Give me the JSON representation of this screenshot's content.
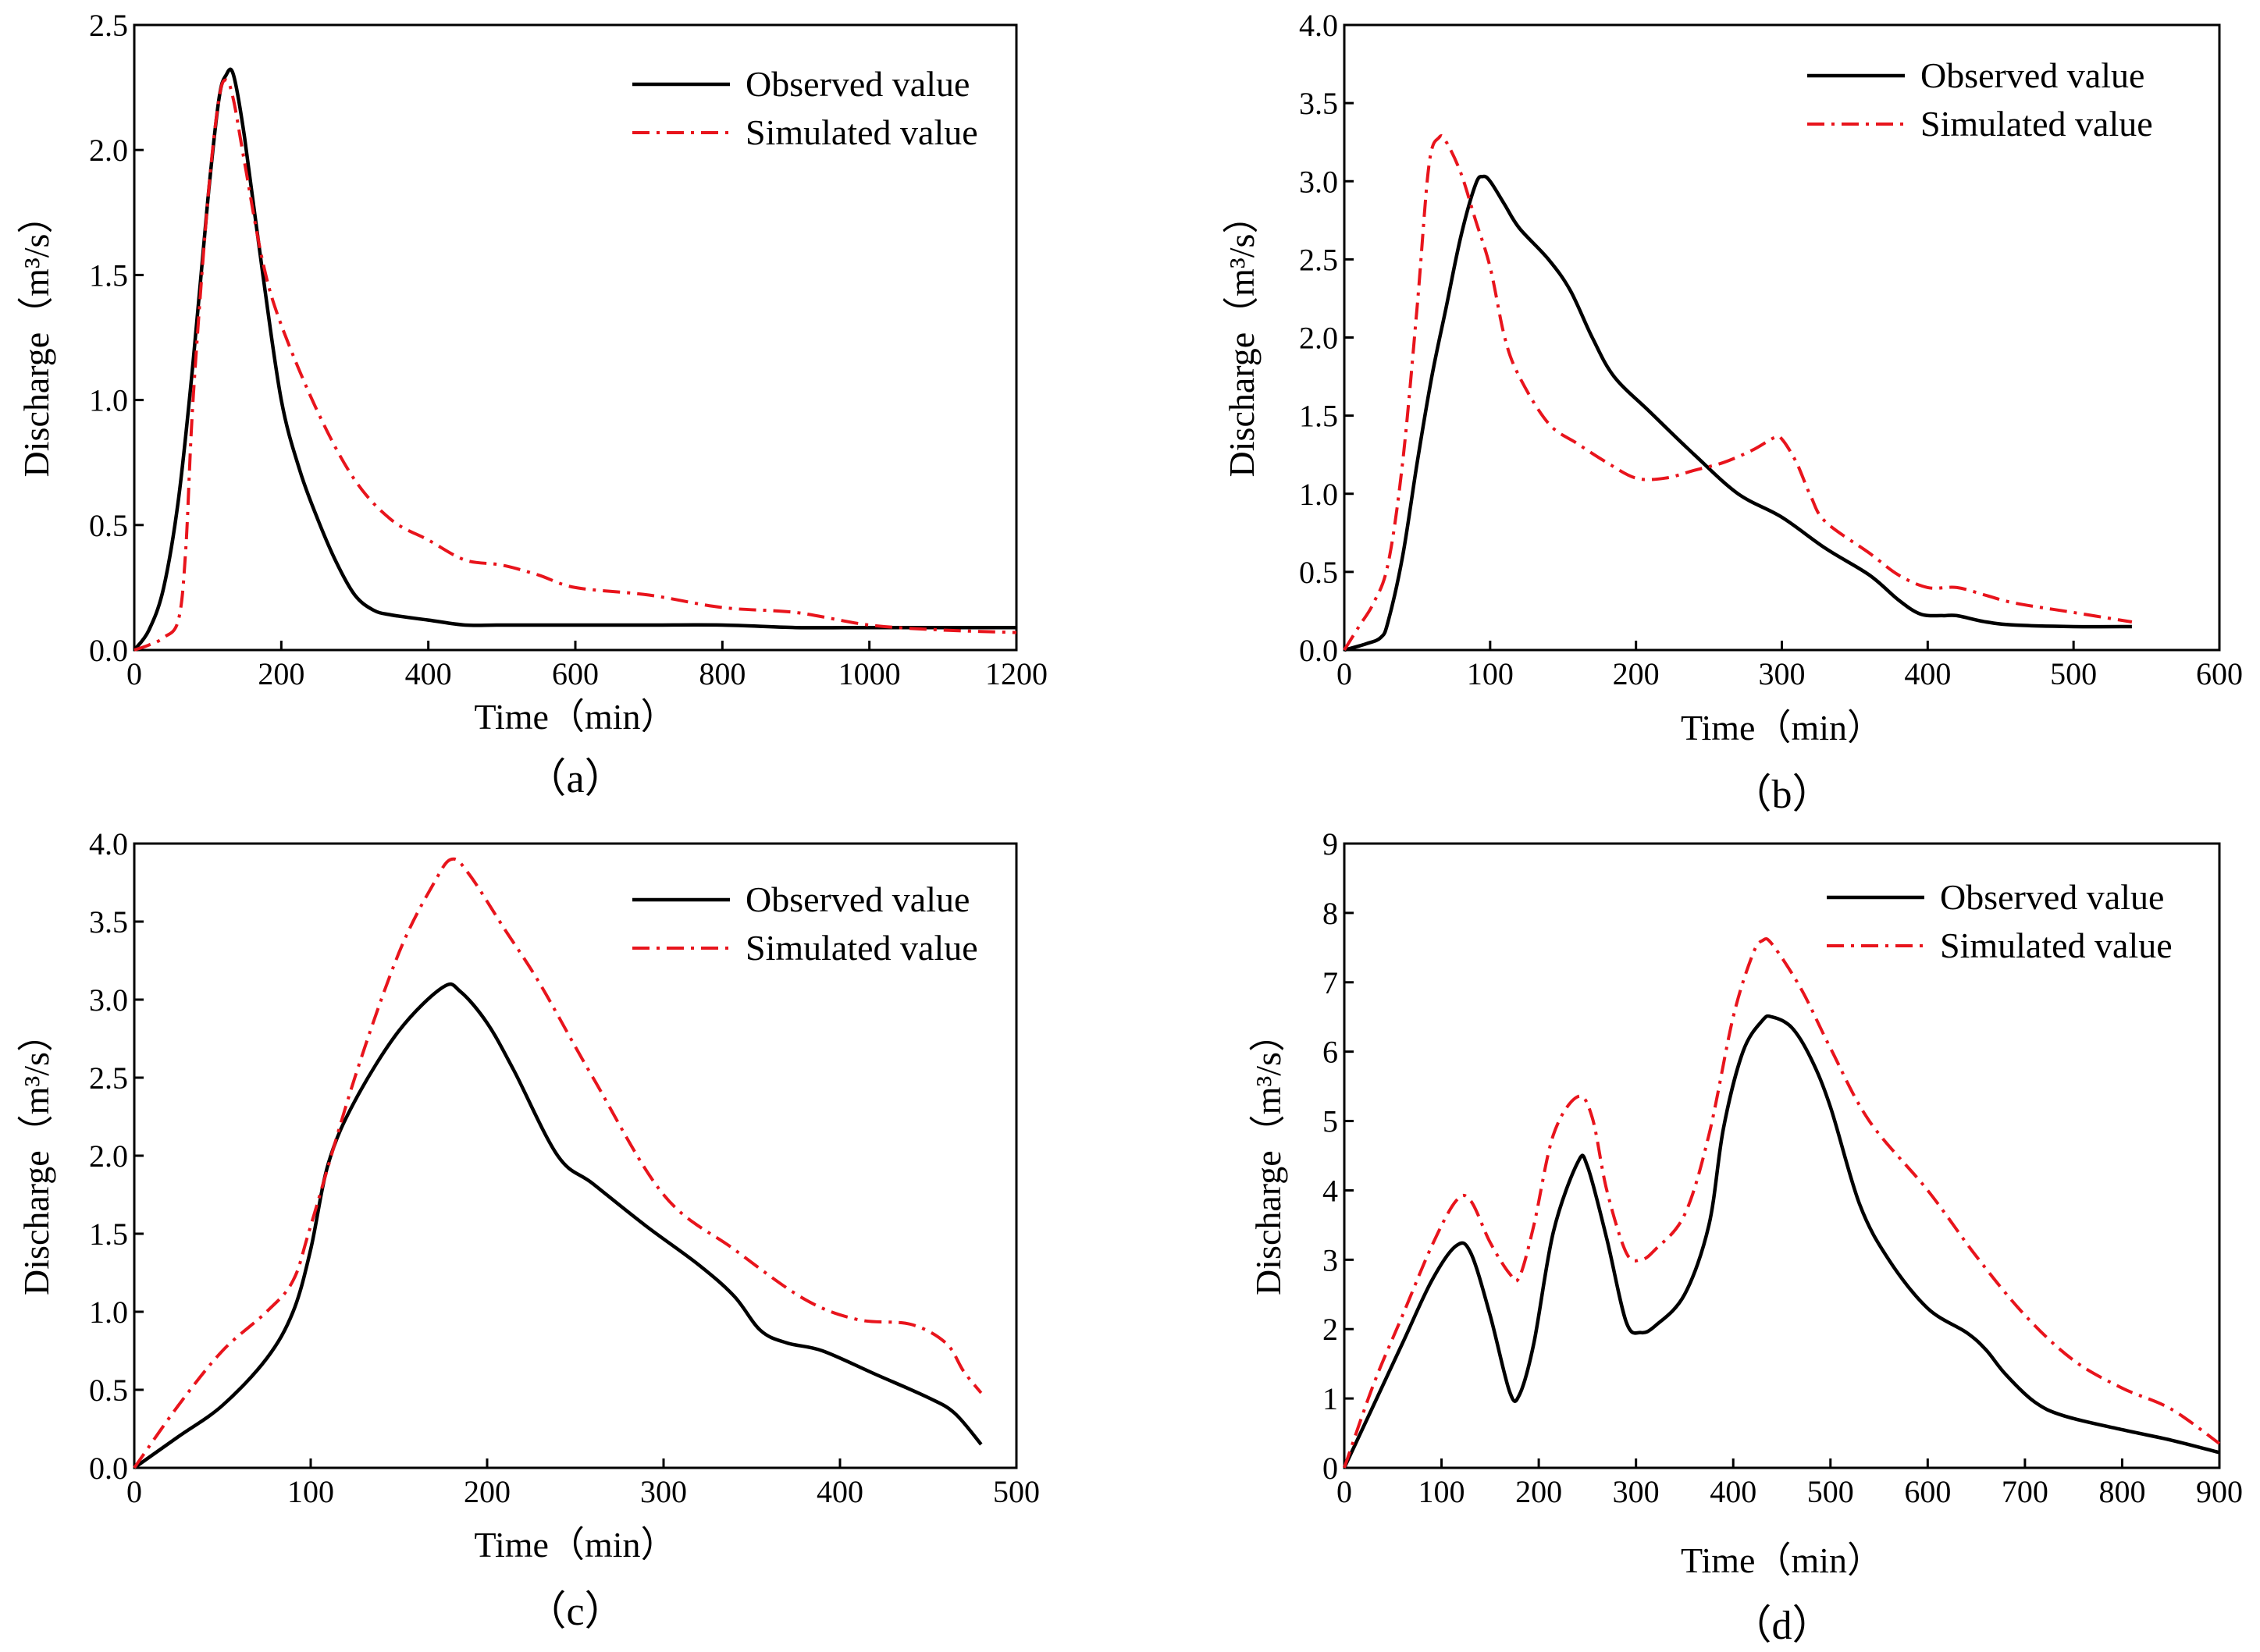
{
  "chart_data": [
    {
      "id": "a",
      "type": "line",
      "caption": "（a）",
      "xlabel": "Time（min）",
      "ylabel": "Discharge（m³/s）",
      "xlim": [
        0,
        1200
      ],
      "ylim": [
        0,
        2.5
      ],
      "xticks": [
        0,
        200,
        400,
        600,
        800,
        1000,
        1200
      ],
      "yticks": [
        0.0,
        0.5,
        1.0,
        1.5,
        2.0,
        2.5
      ],
      "ytick_decimals": 1,
      "legend": "top-right",
      "series": [
        {
          "name": "Observed value",
          "style": "solid",
          "x": [
            0,
            20,
            40,
            60,
            80,
            100,
            115,
            125,
            135,
            150,
            175,
            200,
            225,
            250,
            275,
            300,
            325,
            350,
            400,
            450,
            500,
            600,
            700,
            800,
            900,
            1000,
            1100,
            1200
          ],
          "y": [
            0.0,
            0.08,
            0.25,
            0.6,
            1.15,
            1.8,
            2.2,
            2.3,
            2.3,
            2.05,
            1.5,
            1.0,
            0.72,
            0.52,
            0.35,
            0.22,
            0.16,
            0.14,
            0.12,
            0.1,
            0.1,
            0.1,
            0.1,
            0.1,
            0.09,
            0.09,
            0.09,
            0.09
          ]
        },
        {
          "name": "Simulated value",
          "style": "dashdot",
          "x": [
            0,
            20,
            40,
            60,
            70,
            80,
            100,
            115,
            125,
            135,
            150,
            175,
            200,
            250,
            300,
            350,
            400,
            450,
            500,
            550,
            600,
            700,
            800,
            900,
            1000,
            1100,
            1200
          ],
          "y": [
            0.0,
            0.02,
            0.05,
            0.12,
            0.4,
            1.0,
            1.8,
            2.2,
            2.28,
            2.2,
            1.95,
            1.55,
            1.3,
            0.95,
            0.68,
            0.52,
            0.44,
            0.36,
            0.34,
            0.3,
            0.25,
            0.22,
            0.17,
            0.15,
            0.1,
            0.08,
            0.07
          ]
        }
      ]
    },
    {
      "id": "b",
      "type": "line",
      "caption": "（b）",
      "xlabel": "Time（min）",
      "ylabel": "Discharge（m³/s）",
      "xlim": [
        0,
        600
      ],
      "ylim": [
        0,
        4.0
      ],
      "xticks": [
        0,
        100,
        200,
        300,
        400,
        500,
        600
      ],
      "yticks": [
        0.0,
        0.5,
        1.0,
        1.5,
        2.0,
        2.5,
        3.0,
        3.5,
        4.0
      ],
      "ytick_decimals": 1,
      "legend": "top-right",
      "series": [
        {
          "name": "Observed value",
          "style": "solid",
          "x": [
            0,
            15,
            25,
            30,
            40,
            50,
            60,
            70,
            80,
            90,
            95,
            100,
            110,
            120,
            140,
            155,
            170,
            185,
            210,
            240,
            270,
            300,
            330,
            360,
            380,
            395,
            410,
            420,
            440,
            460,
            500,
            540
          ],
          "y": [
            0.0,
            0.04,
            0.08,
            0.18,
            0.6,
            1.2,
            1.75,
            2.2,
            2.65,
            2.98,
            3.03,
            3.0,
            2.85,
            2.7,
            2.5,
            2.3,
            2.0,
            1.75,
            1.52,
            1.25,
            1.0,
            0.85,
            0.65,
            0.48,
            0.32,
            0.23,
            0.22,
            0.22,
            0.18,
            0.16,
            0.15,
            0.15
          ]
        },
        {
          "name": "Simulated value",
          "style": "dashdot",
          "x": [
            0,
            10,
            20,
            30,
            40,
            50,
            58,
            65,
            70,
            80,
            90,
            100,
            110,
            120,
            140,
            160,
            180,
            200,
            220,
            240,
            260,
            280,
            295,
            300,
            310,
            320,
            330,
            360,
            380,
            400,
            420,
            440,
            460,
            500,
            540
          ],
          "y": [
            0.0,
            0.15,
            0.3,
            0.55,
            1.2,
            2.2,
            3.1,
            3.28,
            3.25,
            3.05,
            2.75,
            2.45,
            2.0,
            1.75,
            1.45,
            1.32,
            1.2,
            1.1,
            1.1,
            1.15,
            1.2,
            1.28,
            1.36,
            1.35,
            1.2,
            0.98,
            0.82,
            0.62,
            0.48,
            0.4,
            0.4,
            0.35,
            0.3,
            0.24,
            0.18
          ]
        }
      ]
    },
    {
      "id": "c",
      "type": "line",
      "caption": "（c）",
      "xlabel": "Time（min）",
      "ylabel": "Discharge（m³/s）",
      "xlim": [
        0,
        500
      ],
      "ylim": [
        0,
        4.0
      ],
      "xticks": [
        0,
        100,
        200,
        300,
        400,
        500
      ],
      "yticks": [
        0.0,
        0.5,
        1.0,
        1.5,
        2.0,
        2.5,
        3.0,
        3.5,
        4.0
      ],
      "ytick_decimals": 1,
      "legend": "top-right",
      "series": [
        {
          "name": "Observed value",
          "style": "solid",
          "x": [
            0,
            25,
            50,
            75,
            90,
            100,
            110,
            125,
            150,
            175,
            185,
            200,
            215,
            240,
            260,
            290,
            320,
            340,
            355,
            370,
            390,
            420,
            450,
            465,
            480
          ],
          "y": [
            0.0,
            0.2,
            0.4,
            0.7,
            1.0,
            1.4,
            1.95,
            2.35,
            2.8,
            3.08,
            3.05,
            2.85,
            2.55,
            2.0,
            1.82,
            1.55,
            1.3,
            1.1,
            0.88,
            0.8,
            0.75,
            0.6,
            0.45,
            0.35,
            0.15
          ]
        },
        {
          "name": "Simulated value",
          "style": "dashdot",
          "x": [
            0,
            25,
            50,
            75,
            90,
            100,
            125,
            150,
            170,
            180,
            190,
            210,
            230,
            260,
            300,
            340,
            380,
            410,
            440,
            460,
            470,
            480
          ],
          "y": [
            0.0,
            0.4,
            0.75,
            1.0,
            1.2,
            1.55,
            2.5,
            3.3,
            3.75,
            3.9,
            3.8,
            3.45,
            3.1,
            2.5,
            1.75,
            1.4,
            1.08,
            0.95,
            0.92,
            0.8,
            0.62,
            0.48
          ]
        }
      ]
    },
    {
      "id": "d",
      "type": "line",
      "caption": "（d）",
      "xlabel": "Time（min）",
      "ylabel": "Discharge（m³/s）",
      "xlim": [
        0,
        900
      ],
      "ylim": [
        0,
        9
      ],
      "xticks": [
        0,
        100,
        200,
        300,
        400,
        500,
        600,
        700,
        800,
        900
      ],
      "yticks": [
        0,
        1,
        2,
        3,
        4,
        5,
        6,
        7,
        8,
        9
      ],
      "ytick_decimals": 0,
      "legend": "top-right",
      "series": [
        {
          "name": "Observed value",
          "style": "solid",
          "x": [
            0,
            30,
            60,
            90,
            115,
            130,
            150,
            170,
            180,
            195,
            215,
            240,
            250,
            270,
            290,
            305,
            320,
            350,
            375,
            390,
            410,
            430,
            440,
            460,
            480,
            500,
            530,
            560,
            600,
            640,
            660,
            680,
            710,
            740,
            800,
            850,
            900
          ],
          "y": [
            0.0,
            0.9,
            1.8,
            2.7,
            3.2,
            3.1,
            2.2,
            1.1,
            1.05,
            1.8,
            3.4,
            4.4,
            4.35,
            3.3,
            2.1,
            1.95,
            2.05,
            2.5,
            3.5,
            4.9,
            6.0,
            6.45,
            6.5,
            6.35,
            5.9,
            5.2,
            3.8,
            3.0,
            2.3,
            1.95,
            1.7,
            1.35,
            0.95,
            0.75,
            0.55,
            0.4,
            0.22
          ]
        },
        {
          "name": "Simulated value",
          "style": "dashdot",
          "x": [
            0,
            30,
            60,
            90,
            115,
            130,
            150,
            170,
            180,
            195,
            215,
            240,
            255,
            270,
            290,
            305,
            320,
            350,
            375,
            400,
            420,
            430,
            440,
            470,
            500,
            540,
            600,
            650,
            700,
            750,
            800,
            850,
            900
          ],
          "y": [
            0.0,
            1.2,
            2.2,
            3.2,
            3.85,
            3.85,
            3.25,
            2.8,
            2.75,
            3.5,
            4.8,
            5.35,
            5.05,
            4.0,
            3.1,
            3.0,
            3.15,
            3.65,
            4.8,
            6.5,
            7.4,
            7.6,
            7.55,
            6.9,
            6.05,
            5.0,
            4.0,
            3.05,
            2.2,
            1.55,
            1.15,
            0.85,
            0.35
          ]
        }
      ]
    }
  ]
}
